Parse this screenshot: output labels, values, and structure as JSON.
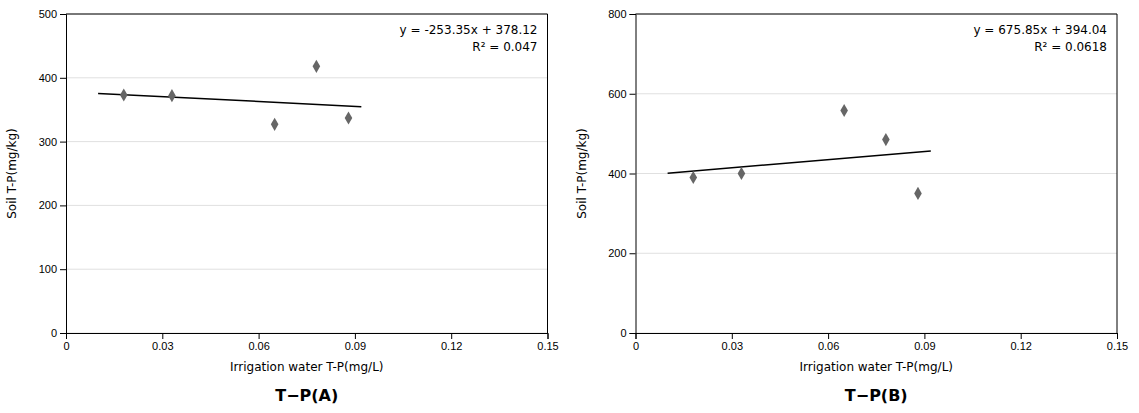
{
  "chart_data": [
    {
      "type": "scatter",
      "title": "T−P(A)",
      "xlabel": "Irrigation water T-P(mg/L)",
      "ylabel": "Soil T-P(mg/kg)",
      "annotations": [
        "y = -253.35x + 378.12",
        "R² = 0.047"
      ],
      "series": [
        {
          "type": "scatter",
          "marker": "diamond",
          "color": "#666666",
          "x": [
            0.018,
            0.033,
            0.065,
            0.078,
            0.088
          ],
          "values": [
            373,
            372,
            327,
            418,
            337
          ]
        },
        {
          "type": "line",
          "line_style": "solid",
          "color": "#000000",
          "x": [
            0.01,
            0.092
          ],
          "values": [
            375.5865,
            354.8118
          ]
        }
      ],
      "xlim": [
        0,
        0.15
      ],
      "xticks": [
        0,
        0.03,
        0.06,
        0.09,
        0.12,
        0.15
      ],
      "ylim": [
        0,
        500
      ],
      "yticks": [
        0,
        100,
        200,
        300,
        400,
        500
      ],
      "grid": "y"
    },
    {
      "type": "scatter",
      "title": "T−P(B)",
      "xlabel": "Irrigation water T-P(mg/L)",
      "ylabel": "Soil T-P(mg/kg)",
      "annotations": [
        "y = 675.85x + 394.04",
        "R² = 0.0618"
      ],
      "series": [
        {
          "type": "scatter",
          "marker": "diamond",
          "color": "#666666",
          "x": [
            0.018,
            0.033,
            0.065,
            0.078,
            0.088
          ],
          "values": [
            390,
            400,
            558,
            485,
            350
          ]
        },
        {
          "type": "line",
          "line_style": "solid",
          "color": "#000000",
          "x": [
            0.01,
            0.092
          ],
          "values": [
            400.7985,
            456.2182
          ]
        }
      ],
      "xlim": [
        0,
        0.15
      ],
      "xticks": [
        0,
        0.03,
        0.06,
        0.09,
        0.12,
        0.15
      ],
      "ylim": [
        0,
        800
      ],
      "yticks": [
        0,
        200,
        400,
        600,
        800
      ],
      "grid": "y"
    }
  ]
}
